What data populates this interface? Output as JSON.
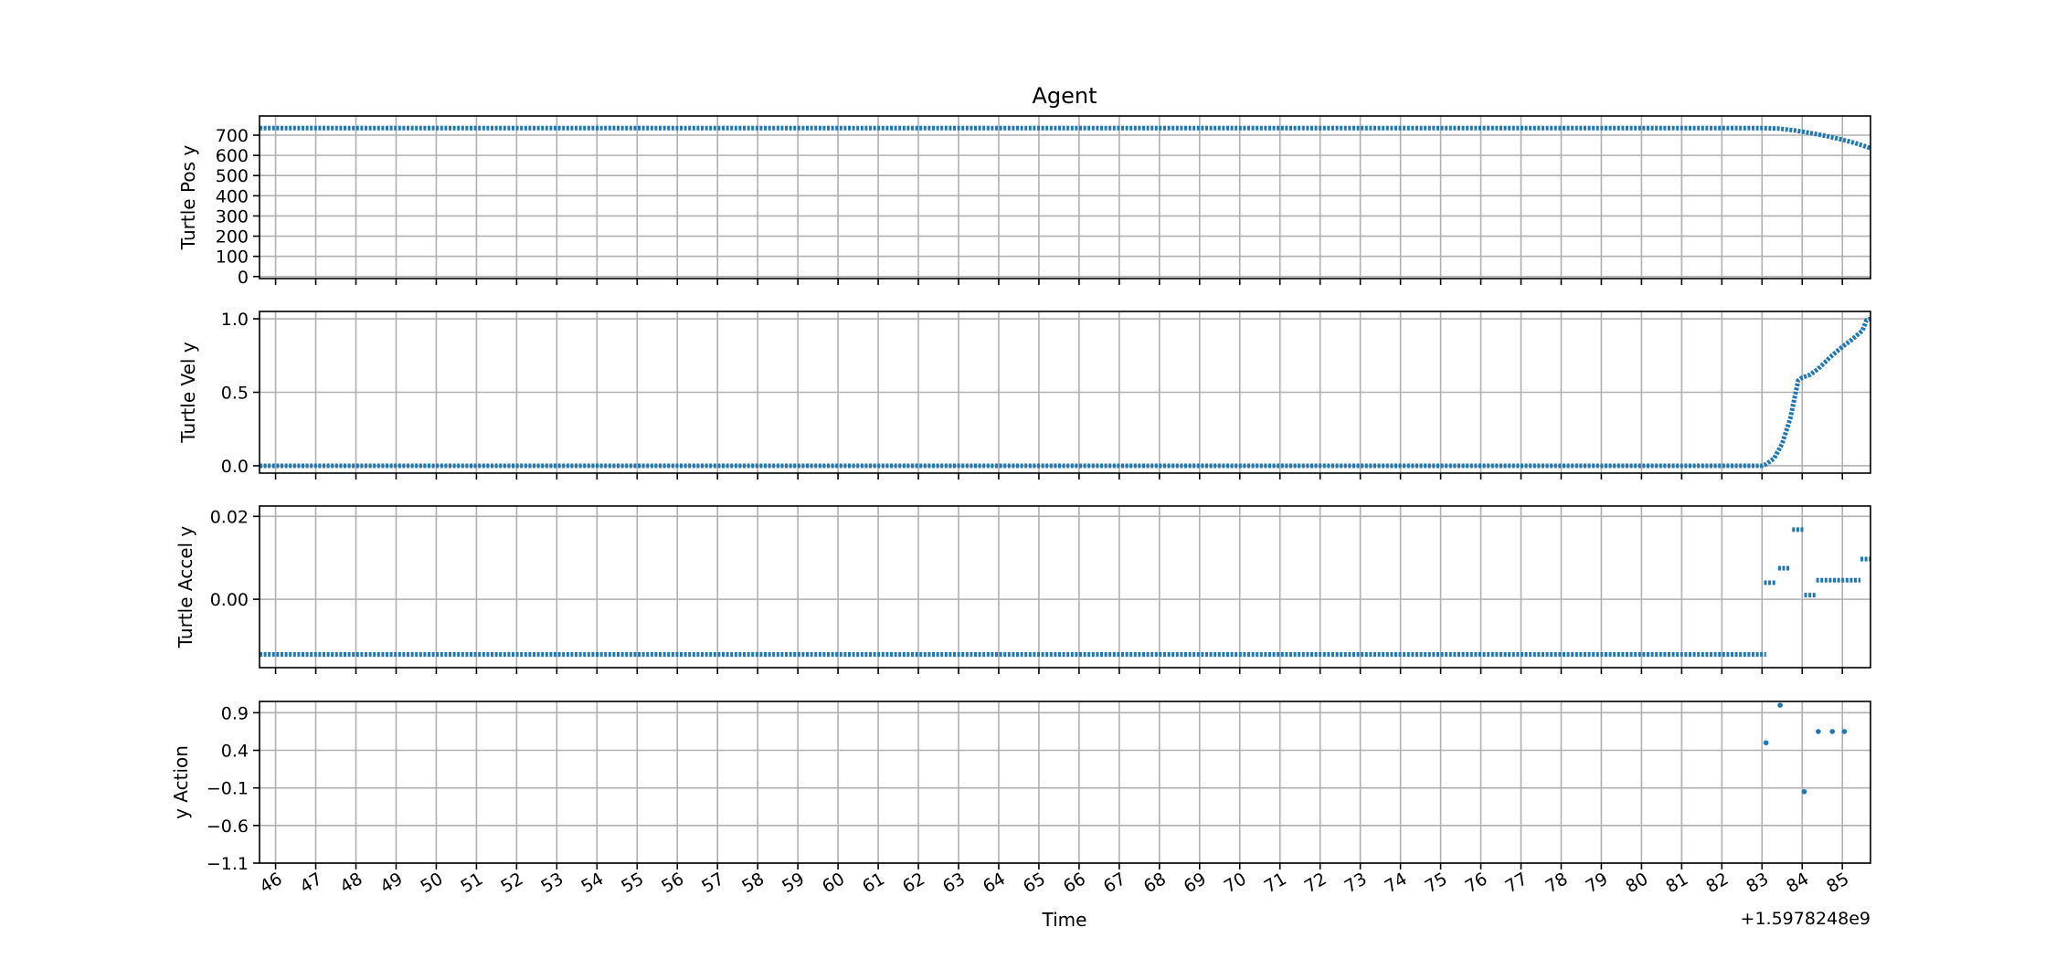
{
  "chart_data": {
    "type": "scatter",
    "title": "Agent",
    "xlabel": "Time",
    "x_offset_label": "+1.5978248e9",
    "xlim": [
      45.6,
      85.7
    ],
    "xticks": [
      46,
      47,
      48,
      49,
      50,
      51,
      52,
      53,
      54,
      55,
      56,
      57,
      58,
      59,
      60,
      61,
      62,
      63,
      64,
      65,
      66,
      67,
      68,
      69,
      70,
      71,
      72,
      73,
      74,
      75,
      76,
      77,
      78,
      79,
      80,
      81,
      82,
      83,
      84,
      85
    ],
    "xtick_labels": [
      "46",
      "47",
      "48",
      "49",
      "50",
      "51",
      "52",
      "53",
      "54",
      "55",
      "56",
      "57",
      "58",
      "59",
      "60",
      "61",
      "62",
      "63",
      "64",
      "65",
      "66",
      "67",
      "68",
      "69",
      "70",
      "71",
      "72",
      "73",
      "74",
      "75",
      "76",
      "77",
      "78",
      "79",
      "80",
      "81",
      "82",
      "83",
      "84",
      "85"
    ],
    "grid": true,
    "color": "#1f77b4",
    "subplots": [
      {
        "ylabel": "Turtle Pos y",
        "ylim": [
          -10,
          795
        ],
        "yticks": [
          0,
          100,
          200,
          300,
          400,
          500,
          600,
          700
        ],
        "ytick_labels": [
          "0",
          "100",
          "200",
          "300",
          "400",
          "500",
          "600",
          "700"
        ],
        "series": [
          {
            "x": [
              45.6,
              83.0,
              83.4,
              83.8,
              84.2,
              84.6,
              85.0,
              85.3,
              85.7
            ],
            "y": [
              735,
              735,
              733,
              724,
              711,
              696,
              678,
              662,
              636
            ]
          }
        ]
      },
      {
        "ylabel": "Turtle Vel y",
        "ylim": [
          -0.05,
          1.05
        ],
        "yticks": [
          0.0,
          0.5,
          1.0
        ],
        "ytick_labels": [
          "0.0",
          "0.5",
          "1.0"
        ],
        "series": [
          {
            "x": [
              45.6,
              83.0,
              83.1,
              83.3,
              83.5,
              83.7,
              83.8,
              83.9,
              84.0,
              84.1,
              84.2,
              84.4,
              84.7,
              85.0,
              85.2,
              85.5,
              85.6,
              85.7
            ],
            "y": [
              0.0,
              0.0,
              0.01,
              0.05,
              0.15,
              0.32,
              0.45,
              0.58,
              0.6,
              0.61,
              0.62,
              0.66,
              0.74,
              0.81,
              0.85,
              0.92,
              0.99,
              1.0
            ]
          }
        ]
      },
      {
        "ylabel": "Turtle Accel y",
        "ylim": [
          -0.0165,
          0.0225
        ],
        "yticks": [
          0.0,
          0.02
        ],
        "ytick_labels": [
          "0.00",
          "0.02"
        ],
        "series": [
          {
            "x": [
              45.6,
              83.1
            ],
            "y": [
              -0.0133,
              -0.0133
            ]
          },
          {
            "x": [
              83.05,
              83.35
            ],
            "y": [
              0.004,
              0.004
            ]
          },
          {
            "x": [
              83.4,
              83.7
            ],
            "y": [
              0.0075,
              0.0075
            ]
          },
          {
            "x": [
              83.75,
              84.05
            ],
            "y": [
              0.0168,
              0.0168
            ]
          },
          {
            "x": [
              84.05,
              84.35
            ],
            "y": [
              0.001,
              0.001
            ]
          },
          {
            "x": [
              84.35,
              85.45
            ],
            "y": [
              0.0046,
              0.0046
            ]
          },
          {
            "x": [
              85.45,
              85.7
            ],
            "y": [
              0.0097,
              0.0097
            ]
          }
        ]
      },
      {
        "ylabel": "y Action",
        "ylim": [
          -1.1,
          1.05
        ],
        "yticks": [
          -1.1,
          -0.6,
          -0.1,
          0.4,
          0.9
        ],
        "ytick_labels": [
          "−1.1",
          "−0.6",
          "−0.1",
          "0.4",
          "0.9"
        ],
        "points": {
          "x": [
            83.1,
            83.45,
            84.05,
            84.4,
            84.75,
            85.05
          ],
          "y": [
            0.5,
            1.0,
            -0.15,
            0.65,
            0.65,
            0.65
          ]
        }
      }
    ]
  }
}
